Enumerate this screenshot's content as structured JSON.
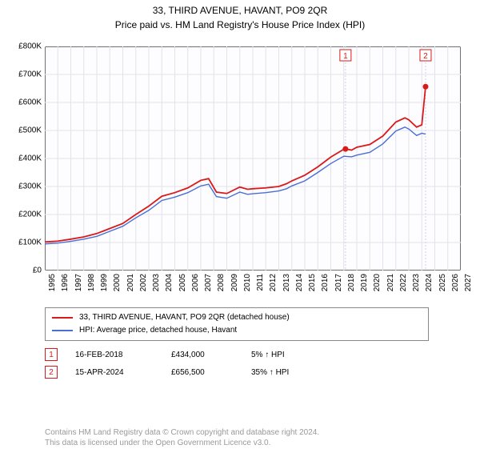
{
  "title": "33, THIRD AVENUE, HAVANT, PO9 2QR",
  "subtitle": "Price paid vs. HM Land Registry's House Price Index (HPI)",
  "chart": {
    "type": "line",
    "background_color": "#fdfdff",
    "grid_color": "#e2e2ea",
    "border_color": "#000000",
    "y_axis": {
      "min": 0,
      "max": 800000,
      "tick_step": 100000,
      "tick_labels": [
        "£0",
        "£100K",
        "£200K",
        "£300K",
        "£400K",
        "£500K",
        "£600K",
        "£700K",
        "£800K"
      ],
      "label_fontsize": 10
    },
    "x_axis": {
      "min": 1995,
      "max": 2027,
      "tick_step": 1,
      "tick_labels": [
        "1995",
        "1996",
        "1997",
        "1998",
        "1999",
        "2000",
        "2001",
        "2002",
        "2003",
        "2004",
        "2005",
        "2006",
        "2007",
        "2008",
        "2009",
        "2010",
        "2011",
        "2012",
        "2013",
        "2014",
        "2015",
        "2016",
        "2017",
        "2018",
        "2019",
        "2020",
        "2021",
        "2022",
        "2023",
        "2024",
        "2025",
        "2026",
        "2027"
      ],
      "label_fontsize": 10,
      "rotation": -90
    },
    "series": [
      {
        "name": "33, THIRD AVENUE, HAVANT, PO9 2QR (detached house)",
        "color": "#d91a1a",
        "line_width": 1.8,
        "data": [
          [
            1995,
            102000
          ],
          [
            1996,
            105000
          ],
          [
            1997,
            112000
          ],
          [
            1998,
            120000
          ],
          [
            1999,
            132000
          ],
          [
            2000,
            150000
          ],
          [
            2001,
            168000
          ],
          [
            2002,
            200000
          ],
          [
            2003,
            230000
          ],
          [
            2004,
            265000
          ],
          [
            2005,
            278000
          ],
          [
            2006,
            295000
          ],
          [
            2007,
            322000
          ],
          [
            2007.6,
            328000
          ],
          [
            2008.2,
            280000
          ],
          [
            2009,
            275000
          ],
          [
            2010,
            298000
          ],
          [
            2010.6,
            290000
          ],
          [
            2011,
            292000
          ],
          [
            2012,
            295000
          ],
          [
            2013,
            300000
          ],
          [
            2013.6,
            310000
          ],
          [
            2014,
            320000
          ],
          [
            2015,
            340000
          ],
          [
            2016,
            370000
          ],
          [
            2017,
            405000
          ],
          [
            2018,
            433000
          ],
          [
            2018.13,
            434000
          ],
          [
            2018.6,
            430000
          ],
          [
            2019,
            440000
          ],
          [
            2020,
            450000
          ],
          [
            2021,
            480000
          ],
          [
            2022,
            530000
          ],
          [
            2022.7,
            545000
          ],
          [
            2023,
            538000
          ],
          [
            2023.6,
            512000
          ],
          [
            2024,
            520000
          ],
          [
            2024.29,
            656500
          ]
        ]
      },
      {
        "name": "HPI: Average price, detached house, Havant",
        "color": "#4a6fd4",
        "line_width": 1.4,
        "data": [
          [
            1995,
            95000
          ],
          [
            1996,
            98000
          ],
          [
            1997,
            104000
          ],
          [
            1998,
            112000
          ],
          [
            1999,
            122000
          ],
          [
            2000,
            140000
          ],
          [
            2001,
            158000
          ],
          [
            2002,
            188000
          ],
          [
            2003,
            215000
          ],
          [
            2004,
            250000
          ],
          [
            2005,
            262000
          ],
          [
            2006,
            278000
          ],
          [
            2007,
            302000
          ],
          [
            2007.6,
            308000
          ],
          [
            2008.2,
            264000
          ],
          [
            2009,
            258000
          ],
          [
            2010,
            280000
          ],
          [
            2010.6,
            272000
          ],
          [
            2011,
            274000
          ],
          [
            2012,
            278000
          ],
          [
            2013,
            284000
          ],
          [
            2013.6,
            292000
          ],
          [
            2014,
            302000
          ],
          [
            2015,
            320000
          ],
          [
            2016,
            350000
          ],
          [
            2017,
            382000
          ],
          [
            2018,
            408000
          ],
          [
            2018.6,
            406000
          ],
          [
            2019,
            412000
          ],
          [
            2020,
            422000
          ],
          [
            2021,
            452000
          ],
          [
            2022,
            498000
          ],
          [
            2022.7,
            512000
          ],
          [
            2023,
            505000
          ],
          [
            2023.6,
            482000
          ],
          [
            2024,
            490000
          ],
          [
            2024.29,
            487000
          ]
        ]
      }
    ],
    "sale_markers": [
      {
        "badge": "1",
        "x": 2018.13,
        "y": 434000,
        "dot_color": "#d91a1a",
        "guide_color": "#d0d3e6"
      },
      {
        "badge": "2",
        "x": 2024.29,
        "y": 656500,
        "dot_color": "#d91a1a",
        "guide_color": "#d0d3e6"
      }
    ],
    "marker_radius": 3.5
  },
  "legend": {
    "items": [
      {
        "color": "#d91a1a",
        "label": "33, THIRD AVENUE, HAVANT, PO9 2QR (detached house)"
      },
      {
        "color": "#4a6fd4",
        "label": "HPI: Average price, detached house, Havant"
      }
    ]
  },
  "sales": [
    {
      "badge": "1",
      "date": "16-FEB-2018",
      "price": "£434,000",
      "diff": "5% ↑ HPI"
    },
    {
      "badge": "2",
      "date": "15-APR-2024",
      "price": "£656,500",
      "diff": "35% ↑ HPI"
    }
  ],
  "footer_lines": [
    "Contains HM Land Registry data © Crown copyright and database right 2024.",
    "This data is licensed under the Open Government Licence v3.0."
  ]
}
